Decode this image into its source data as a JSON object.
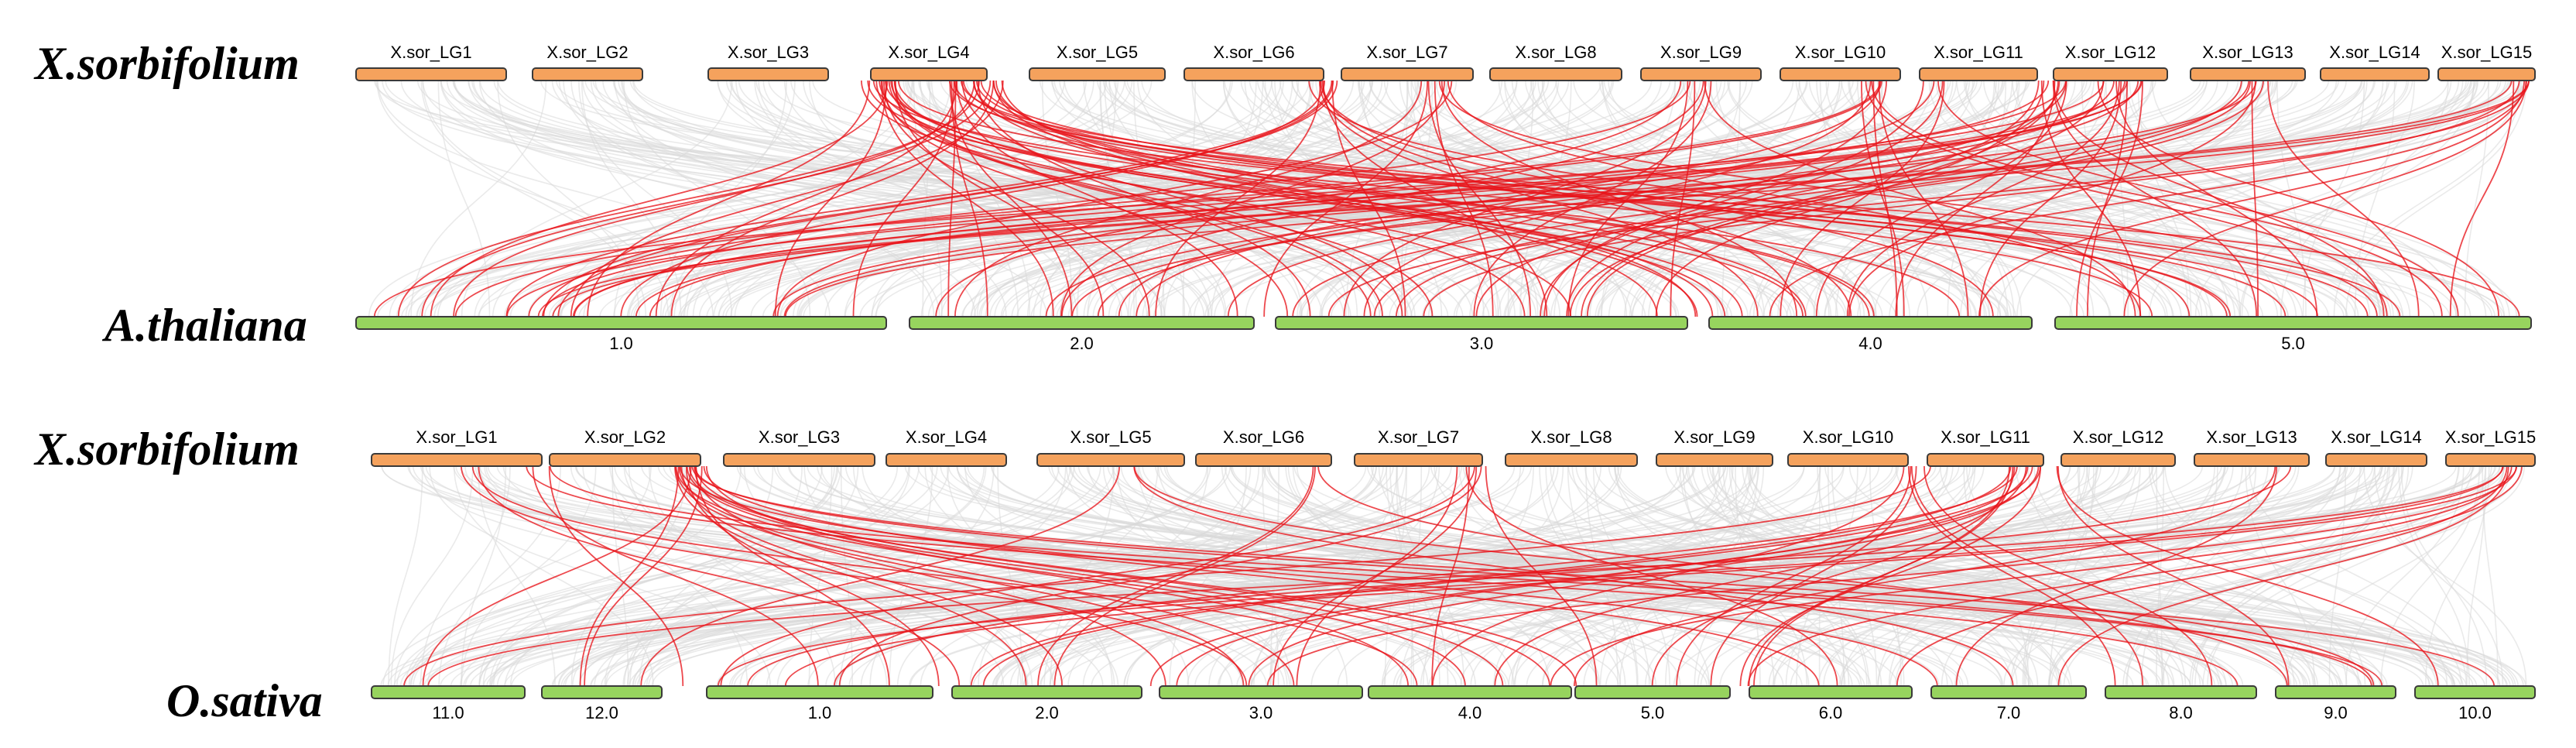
{
  "panels": [
    {
      "id": "top",
      "top_species": "X.sorbifolium",
      "bottom_species": "A.thaliana",
      "top_chromosomes": [
        "X.sor_LG1",
        "X.sor_LG2",
        "X.sor_LG3",
        "X.sor_LG4",
        "X.sor_LG5",
        "X.sor_LG6",
        "X.sor_LG7",
        "X.sor_LG8",
        "X.sor_LG9",
        "X.sor_LG10",
        "X.sor_LG11",
        "X.sor_LG12",
        "X.sor_LG13",
        "X.sor_LG14",
        "X.sor_LG15"
      ],
      "bottom_chromosomes": [
        "1.0",
        "2.0",
        "3.0",
        "4.0",
        "5.0"
      ],
      "highlighted_link_count": 130,
      "background_link_count": 420
    },
    {
      "id": "bottom",
      "top_species": "X.sorbifolium",
      "bottom_species": "O.sativa",
      "top_chromosomes": [
        "X.sor_LG1",
        "X.sor_LG2",
        "X.sor_LG3",
        "X.sor_LG4",
        "X.sor_LG5",
        "X.sor_LG6",
        "X.sor_LG7",
        "X.sor_LG8",
        "X.sor_LG9",
        "X.sor_LG10",
        "X.sor_LG11",
        "X.sor_LG12",
        "X.sor_LG13",
        "X.sor_LG14",
        "X.sor_LG15"
      ],
      "bottom_chromosomes": [
        "11.0",
        "12.0",
        "1.0",
        "2.0",
        "3.0",
        "4.0",
        "5.0",
        "6.0",
        "7.0",
        "8.0",
        "9.0",
        "10.0"
      ],
      "highlighted_link_count": 70,
      "background_link_count": 420
    }
  ],
  "colors": {
    "top_chromosome_fill": "#F5A25D",
    "bottom_chromosome_fill": "#97D45E",
    "chromosome_stroke": "#3a3a3a",
    "highlight_link": "#E8151B",
    "background_link": "#D9D9D9"
  }
}
